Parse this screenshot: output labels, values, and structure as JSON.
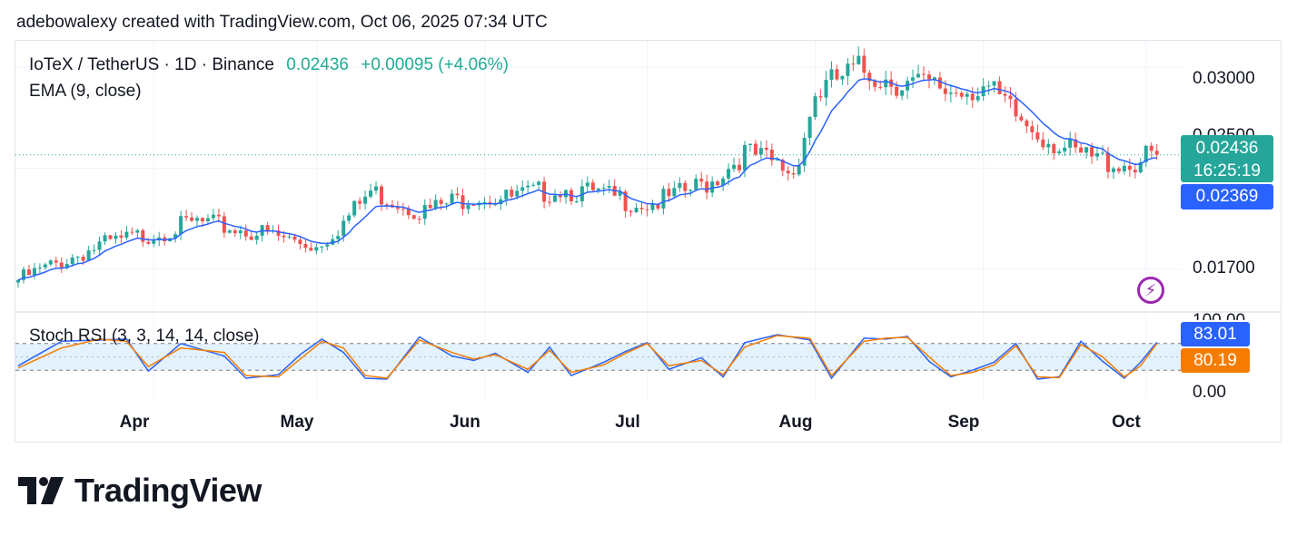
{
  "credit": "adebowalexy created with TradingView.com, Oct 06, 2025 07:34 UTC",
  "legend": {
    "symbol": "IoTeX / TetherUS · 1D · Binance",
    "price": "0.02436",
    "change": "+0.00095 (+4.06%)",
    "ema": "EMA (9, close)",
    "stoch": "Stoch RSI (3, 3, 14, 14, close)"
  },
  "tags": {
    "last_price": "0.02436",
    "countdown": "16:25:19",
    "ema_value": "0.02369",
    "k_value": "83.01",
    "d_value": "80.19"
  },
  "brand": "TradingView",
  "colors": {
    "up": "#26a69a",
    "down": "#ef5350",
    "ema": "#2962ff",
    "k_line": "#2962ff",
    "d_line": "#f57c00",
    "band": "#e3f2fd"
  },
  "chart_data": [
    {
      "type": "candlestick",
      "title": "IoTeX / TetherUS · 1D · Binance",
      "y_ticks": [
        "0.03000",
        "0.02500",
        "0.01700"
      ],
      "y_range": [
        0.0143,
        0.0317
      ],
      "x_ticks": [
        "Apr",
        "May",
        "Jun",
        "Jul",
        "Aug",
        "Sep",
        "Oct"
      ],
      "x_tick_days": [
        25,
        55,
        86,
        116,
        147,
        178,
        208
      ],
      "series": [
        {
          "name": "close",
          "days": [
            0,
            15,
            25,
            33,
            45,
            55,
            60,
            65,
            75,
            84,
            90,
            100,
            116,
            120,
            128,
            134,
            138,
            143,
            147,
            151,
            155,
            163,
            172,
            178,
            185,
            195,
            205,
            210
          ],
          "values": [
            0.0163,
            0.0185,
            0.0193,
            0.02,
            0.0193,
            0.0185,
            0.02,
            0.022,
            0.0207,
            0.0218,
            0.0215,
            0.0222,
            0.0212,
            0.0215,
            0.0227,
            0.0245,
            0.024,
            0.0232,
            0.0282,
            0.0292,
            0.0298,
            0.029,
            0.0285,
            0.0288,
            0.0265,
            0.0243,
            0.0237,
            0.0244
          ]
        },
        {
          "name": "EMA (9, close)",
          "last": "0.02369"
        }
      ],
      "last_price": "0.02436"
    },
    {
      "type": "line",
      "title": "Stoch RSI (3, 3, 14, 14, close)",
      "y_ticks": [
        "100.00",
        "0.00"
      ],
      "y_range": [
        0,
        100
      ],
      "bands": [
        20,
        80
      ],
      "series": [
        {
          "name": "K",
          "days": [
            0,
            8,
            15,
            20,
            24,
            30,
            38,
            42,
            48,
            52,
            56,
            60,
            64,
            68,
            74,
            80,
            84,
            88,
            94,
            98,
            102,
            108,
            112,
            116,
            120,
            126,
            130,
            134,
            140,
            146,
            150,
            156,
            160,
            164,
            168,
            172,
            176,
            180,
            184,
            188,
            192,
            196,
            200,
            204,
            207,
            210
          ],
          "values": [
            30,
            85,
            88,
            90,
            18,
            80,
            52,
            2,
            10,
            55,
            90,
            60,
            2,
            0,
            95,
            52,
            42,
            58,
            15,
            72,
            8,
            38,
            62,
            82,
            22,
            48,
            5,
            82,
            100,
            88,
            2,
            92,
            90,
            96,
            40,
            5,
            20,
            38,
            80,
            0,
            5,
            85,
            40,
            2,
            38,
            83
          ]
        },
        {
          "name": "D",
          "days": [
            0,
            8,
            15,
            20,
            24,
            30,
            38,
            42,
            48,
            52,
            56,
            60,
            64,
            68,
            74,
            80,
            84,
            88,
            94,
            98,
            102,
            108,
            112,
            116,
            120,
            126,
            130,
            134,
            140,
            146,
            150,
            156,
            160,
            164,
            168,
            172,
            176,
            180,
            184,
            188,
            192,
            196,
            200,
            204,
            207,
            210
          ],
          "values": [
            25,
            70,
            90,
            85,
            28,
            70,
            60,
            8,
            5,
            45,
            85,
            70,
            8,
            2,
            88,
            60,
            45,
            55,
            22,
            65,
            15,
            32,
            58,
            80,
            30,
            42,
            10,
            72,
            98,
            92,
            8,
            85,
            92,
            94,
            50,
            8,
            15,
            32,
            75,
            5,
            3,
            78,
            50,
            5,
            30,
            80
          ],
          "last": "80.19"
        }
      ]
    }
  ]
}
